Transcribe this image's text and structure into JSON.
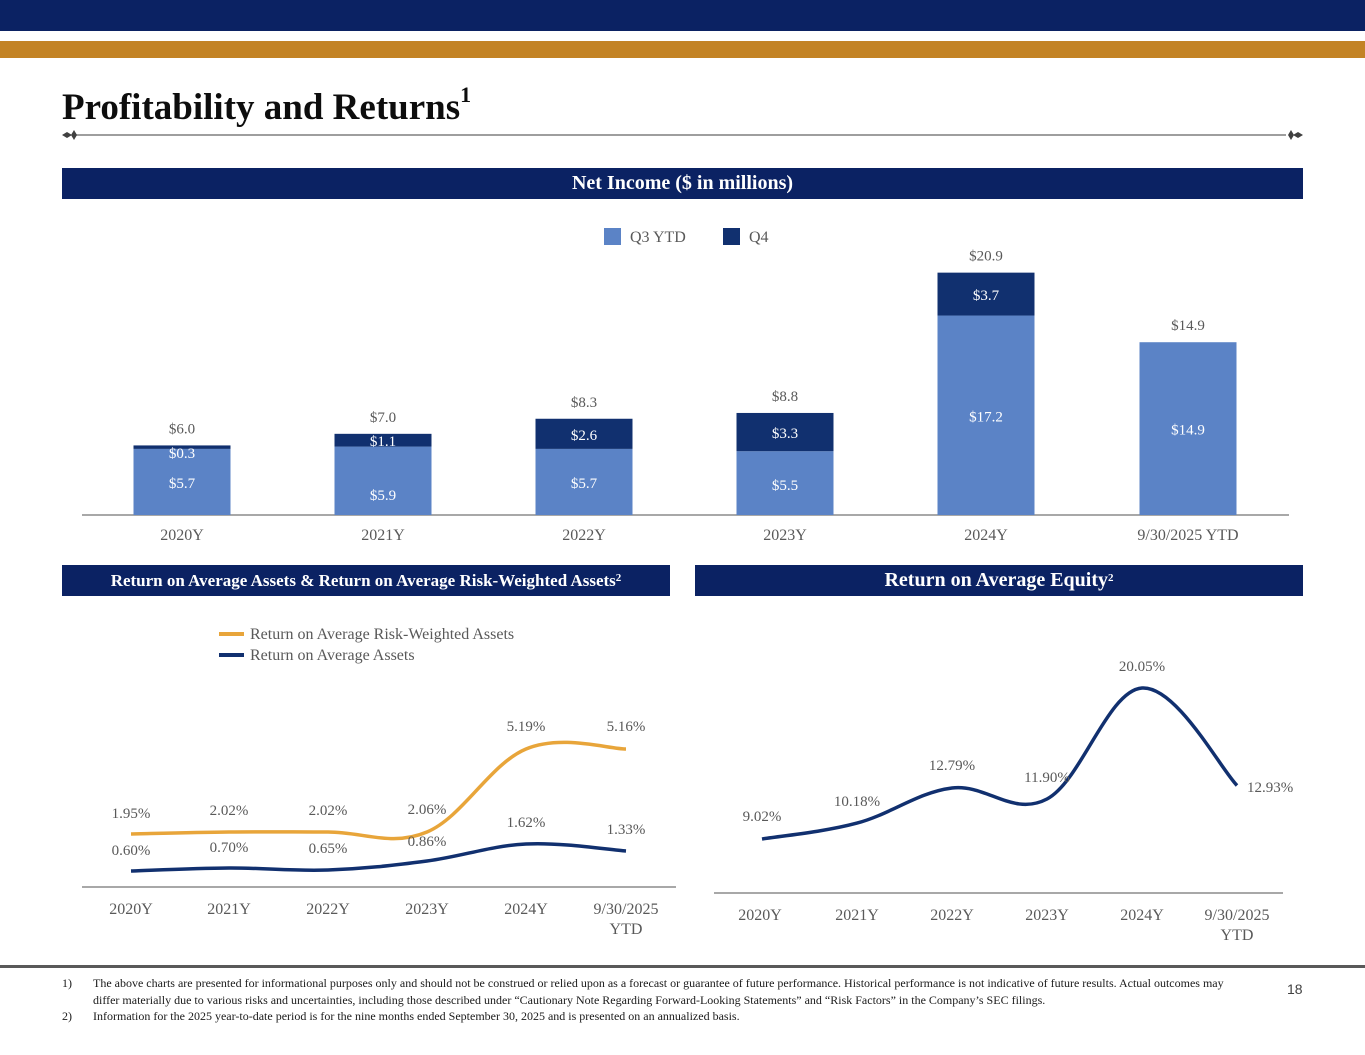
{
  "page": {
    "title": "Profitability and Returns",
    "title_sup": "1",
    "page_number": "18"
  },
  "colors": {
    "navy": "#0b2263",
    "gold": "#c38325",
    "q3_ytd": "#5b83c6",
    "q4": "#11306f",
    "rorwa_line": "#e8a53a",
    "roa_line": "#11306f",
    "roe_line": "#11306f",
    "axis": "#8c8c8c",
    "label_gray": "#595959"
  },
  "panels": {
    "net_income": {
      "title": "Net Income ($ in millions)"
    },
    "roa": {
      "title": "Return on Average Assets & Return on Average Risk-Weighted Assets",
      "title_sup": "2"
    },
    "roe": {
      "title": "Return on Average Equity",
      "title_sup": "2"
    }
  },
  "chart_data": [
    {
      "id": "net_income",
      "type": "bar",
      "stacked": true,
      "title": "Net Income ($ in millions)",
      "categories": [
        "2020Y",
        "2021Y",
        "2022Y",
        "2023Y",
        "2024Y",
        "9/30/2025 YTD"
      ],
      "series": [
        {
          "name": "Q3 YTD",
          "values": [
            5.7,
            5.9,
            5.7,
            5.5,
            17.2,
            14.9
          ],
          "labels": [
            "$5.7",
            "$5.9",
            "$5.7",
            "$5.5",
            "$17.2",
            "$14.9"
          ]
        },
        {
          "name": "Q4",
          "values": [
            0.3,
            1.1,
            2.6,
            3.3,
            3.7,
            null
          ],
          "labels": [
            "$0.3",
            "$1.1",
            "$2.6",
            "$3.3",
            "$3.7",
            null
          ]
        }
      ],
      "totals": [
        6.0,
        7.0,
        8.3,
        8.8,
        20.9,
        14.9
      ],
      "total_labels": [
        "$6.0",
        "$7.0",
        "$8.3",
        "$8.8",
        "$20.9",
        "$14.9"
      ],
      "legend": [
        "Q3 YTD",
        "Q4"
      ],
      "legend_position": "top-center",
      "ylim": [
        0,
        22
      ],
      "grid": false,
      "xlabel": "",
      "ylabel": ""
    },
    {
      "id": "roa",
      "type": "line",
      "smooth": true,
      "title": "Return on Average Assets & Return on Average Risk-Weighted Assets",
      "categories": [
        "2020Y",
        "2021Y",
        "2022Y",
        "2023Y",
        "2024Y",
        "9/30/2025 YTD"
      ],
      "category_lines": [
        [
          "2020Y"
        ],
        [
          "2021Y"
        ],
        [
          "2022Y"
        ],
        [
          "2023Y"
        ],
        [
          "2024Y"
        ],
        [
          "9/30/2025",
          "YTD"
        ]
      ],
      "series": [
        {
          "name": "Return on Average Risk-Weighted Assets",
          "values": [
            1.95,
            2.02,
            2.02,
            2.06,
            5.19,
            5.16
          ],
          "labels": [
            "1.95%",
            "2.02%",
            "2.02%",
            "2.06%",
            "5.19%",
            "5.16%"
          ]
        },
        {
          "name": "Return on Average Assets",
          "values": [
            0.6,
            0.7,
            0.65,
            0.86,
            1.62,
            1.33
          ],
          "labels": [
            "0.60%",
            "0.70%",
            "0.65%",
            "0.86%",
            "1.62%",
            "1.33%"
          ]
        }
      ],
      "legend_position": "top-left",
      "ylim": [
        0,
        6
      ],
      "grid": false,
      "unit": "%"
    },
    {
      "id": "roe",
      "type": "line",
      "smooth": true,
      "title": "Return on Average Equity",
      "categories": [
        "2020Y",
        "2021Y",
        "2022Y",
        "2023Y",
        "2024Y",
        "9/30/2025 YTD"
      ],
      "category_lines": [
        [
          "2020Y"
        ],
        [
          "2021Y"
        ],
        [
          "2022Y"
        ],
        [
          "2023Y"
        ],
        [
          "2024Y"
        ],
        [
          "9/30/2025",
          "YTD"
        ]
      ],
      "series": [
        {
          "name": "Return on Average Equity",
          "values": [
            9.02,
            10.18,
            12.79,
            11.9,
            20.05,
            12.93
          ],
          "labels": [
            "9.02%",
            "10.18%",
            "12.79%",
            "11.90%",
            "20.05%",
            "12.93%"
          ]
        }
      ],
      "legend_position": "none",
      "ylim": [
        0,
        22
      ],
      "grid": false,
      "unit": "%"
    }
  ],
  "footnotes": [
    {
      "num": "1)",
      "text": "The above charts are presented for informational purposes only and should not be construed or relied upon as a forecast or guarantee of future performance. Historical performance is not indicative of future results. Actual outcomes may differ materially due to various risks and uncertainties, including those described under “Cautionary Note Regarding Forward-Looking Statements” and “Risk Factors” in the Company’s SEC filings."
    },
    {
      "num": "2)",
      "text": "Information for the 2025 year-to-date period is for the nine months ended September 30, 2025 and is presented on an annualized basis."
    }
  ]
}
